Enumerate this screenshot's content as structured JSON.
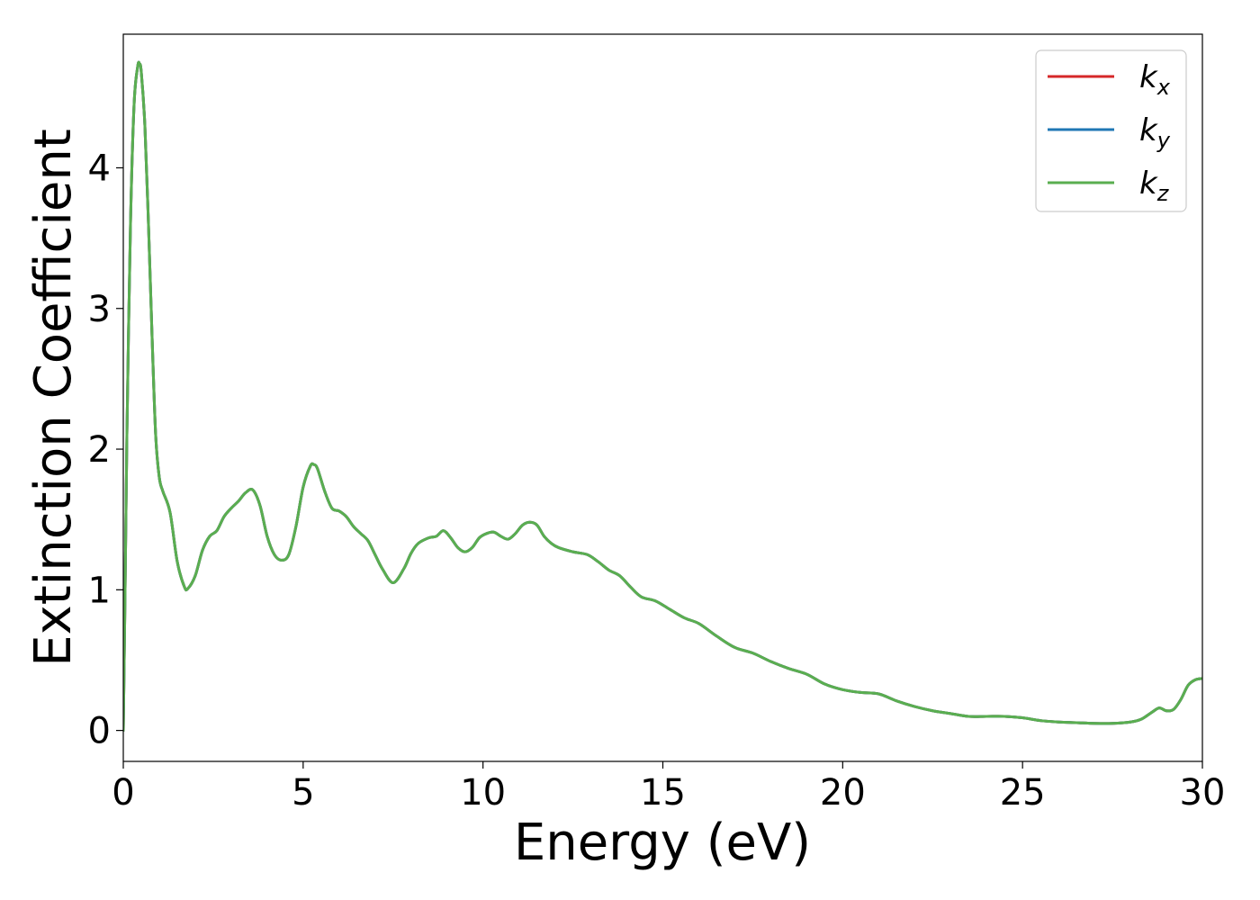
{
  "chart_data": {
    "type": "line",
    "title": "",
    "xlabel": "Energy (eV)",
    "ylabel": "Extinction Coefficient",
    "xlim": [
      0,
      30
    ],
    "ylim": [
      -0.22,
      4.95
    ],
    "xticks": [
      "0",
      "5",
      "10",
      "15",
      "20",
      "25",
      "30"
    ],
    "yticks": [
      "0",
      "1",
      "2",
      "3",
      "4"
    ],
    "grid": false,
    "legend_position": "top-right",
    "x": [
      0,
      0.05,
      0.1,
      0.2,
      0.3,
      0.4,
      0.45,
      0.5,
      0.6,
      0.7,
      0.8,
      0.9,
      1.0,
      1.1,
      1.3,
      1.5,
      1.7,
      1.8,
      2.0,
      2.2,
      2.4,
      2.6,
      2.8,
      3.0,
      3.2,
      3.4,
      3.6,
      3.8,
      4.0,
      4.2,
      4.4,
      4.6,
      4.8,
      5.0,
      5.2,
      5.3,
      5.4,
      5.6,
      5.8,
      6.0,
      6.2,
      6.4,
      6.6,
      6.8,
      7.0,
      7.2,
      7.5,
      7.8,
      8.0,
      8.2,
      8.5,
      8.7,
      8.9,
      9.1,
      9.3,
      9.5,
      9.7,
      9.9,
      10.1,
      10.3,
      10.5,
      10.7,
      10.9,
      11.1,
      11.3,
      11.5,
      11.7,
      11.9,
      12.1,
      12.5,
      12.9,
      13.2,
      13.5,
      13.8,
      14.1,
      14.4,
      14.8,
      15.2,
      15.6,
      16.0,
      16.5,
      17.0,
      17.5,
      18.0,
      18.5,
      19.0,
      19.5,
      20.0,
      20.5,
      21.0,
      21.5,
      22.0,
      22.5,
      23.0,
      23.5,
      24.0,
      24.5,
      25.0,
      25.5,
      26.0,
      26.5,
      27.0,
      27.5,
      28.0,
      28.3,
      28.6,
      28.8,
      29.0,
      29.2,
      29.4,
      29.6,
      29.8,
      30.0
    ],
    "series": [
      {
        "name": "k_x",
        "legend_main": "k",
        "legend_sub": "x",
        "color": "#d62728",
        "y": [
          0.0,
          1.0,
          2.1,
          3.6,
          4.45,
          4.72,
          4.74,
          4.68,
          4.3,
          3.6,
          2.8,
          2.1,
          1.8,
          1.7,
          1.55,
          1.2,
          1.02,
          1.01,
          1.1,
          1.28,
          1.38,
          1.42,
          1.52,
          1.58,
          1.63,
          1.69,
          1.71,
          1.6,
          1.38,
          1.25,
          1.21,
          1.25,
          1.45,
          1.73,
          1.88,
          1.89,
          1.86,
          1.7,
          1.58,
          1.56,
          1.52,
          1.45,
          1.4,
          1.35,
          1.25,
          1.15,
          1.05,
          1.15,
          1.26,
          1.33,
          1.37,
          1.38,
          1.42,
          1.37,
          1.3,
          1.27,
          1.3,
          1.37,
          1.4,
          1.41,
          1.38,
          1.36,
          1.4,
          1.46,
          1.48,
          1.46,
          1.38,
          1.33,
          1.3,
          1.27,
          1.25,
          1.2,
          1.14,
          1.1,
          1.02,
          0.95,
          0.92,
          0.86,
          0.8,
          0.76,
          0.67,
          0.59,
          0.55,
          0.49,
          0.44,
          0.4,
          0.33,
          0.29,
          0.27,
          0.26,
          0.21,
          0.17,
          0.14,
          0.12,
          0.1,
          0.1,
          0.1,
          0.09,
          0.07,
          0.06,
          0.055,
          0.05,
          0.05,
          0.06,
          0.08,
          0.13,
          0.16,
          0.14,
          0.15,
          0.22,
          0.32,
          0.36,
          0.37
        ]
      },
      {
        "name": "k_y",
        "legend_main": "k",
        "legend_sub": "y",
        "color": "#1f77b4",
        "y": [
          0.0,
          1.0,
          2.1,
          3.6,
          4.45,
          4.72,
          4.74,
          4.68,
          4.3,
          3.6,
          2.8,
          2.1,
          1.8,
          1.7,
          1.55,
          1.2,
          1.02,
          1.01,
          1.1,
          1.28,
          1.38,
          1.42,
          1.52,
          1.58,
          1.63,
          1.69,
          1.71,
          1.6,
          1.38,
          1.25,
          1.21,
          1.25,
          1.45,
          1.73,
          1.88,
          1.89,
          1.86,
          1.7,
          1.58,
          1.56,
          1.52,
          1.45,
          1.4,
          1.35,
          1.25,
          1.15,
          1.05,
          1.15,
          1.26,
          1.33,
          1.37,
          1.38,
          1.42,
          1.37,
          1.3,
          1.27,
          1.3,
          1.37,
          1.4,
          1.41,
          1.38,
          1.36,
          1.4,
          1.46,
          1.48,
          1.46,
          1.38,
          1.33,
          1.3,
          1.27,
          1.25,
          1.2,
          1.14,
          1.1,
          1.02,
          0.95,
          0.92,
          0.86,
          0.8,
          0.76,
          0.67,
          0.59,
          0.55,
          0.49,
          0.44,
          0.4,
          0.33,
          0.29,
          0.27,
          0.26,
          0.21,
          0.17,
          0.14,
          0.12,
          0.1,
          0.1,
          0.1,
          0.09,
          0.07,
          0.06,
          0.055,
          0.05,
          0.05,
          0.06,
          0.08,
          0.13,
          0.16,
          0.14,
          0.15,
          0.22,
          0.32,
          0.36,
          0.37
        ]
      },
      {
        "name": "k_z",
        "legend_main": "k",
        "legend_sub": "z",
        "color": "#5aae50",
        "y": [
          0.0,
          1.0,
          2.1,
          3.6,
          4.45,
          4.72,
          4.74,
          4.68,
          4.3,
          3.6,
          2.8,
          2.1,
          1.8,
          1.7,
          1.55,
          1.2,
          1.02,
          1.01,
          1.1,
          1.28,
          1.38,
          1.42,
          1.52,
          1.58,
          1.63,
          1.69,
          1.71,
          1.6,
          1.38,
          1.25,
          1.21,
          1.25,
          1.45,
          1.73,
          1.88,
          1.89,
          1.86,
          1.7,
          1.58,
          1.56,
          1.52,
          1.45,
          1.4,
          1.35,
          1.25,
          1.15,
          1.05,
          1.15,
          1.26,
          1.33,
          1.37,
          1.38,
          1.42,
          1.37,
          1.3,
          1.27,
          1.3,
          1.37,
          1.4,
          1.41,
          1.38,
          1.36,
          1.4,
          1.46,
          1.48,
          1.46,
          1.38,
          1.33,
          1.3,
          1.27,
          1.25,
          1.2,
          1.14,
          1.1,
          1.02,
          0.95,
          0.92,
          0.86,
          0.8,
          0.76,
          0.67,
          0.59,
          0.55,
          0.49,
          0.44,
          0.4,
          0.33,
          0.29,
          0.27,
          0.26,
          0.21,
          0.17,
          0.14,
          0.12,
          0.1,
          0.1,
          0.1,
          0.09,
          0.07,
          0.06,
          0.055,
          0.05,
          0.05,
          0.06,
          0.08,
          0.13,
          0.16,
          0.14,
          0.15,
          0.22,
          0.32,
          0.36,
          0.37
        ]
      }
    ]
  }
}
